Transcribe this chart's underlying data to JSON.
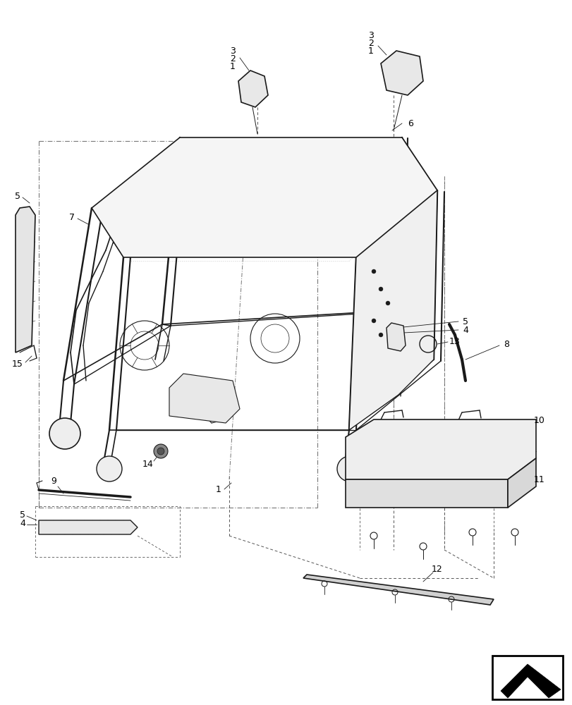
{
  "background_color": "#ffffff",
  "line_color": "#1a1a1a",
  "dashed_color": "#555555",
  "dotted_color": "#888888",
  "label_color": "#000000",
  "fig_width": 8.12,
  "fig_height": 10.0
}
